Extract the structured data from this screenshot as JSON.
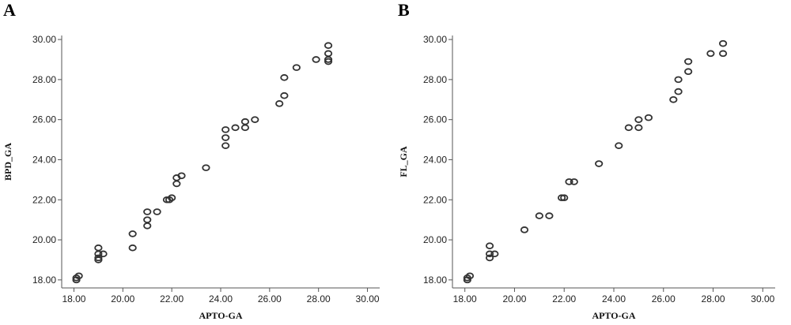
{
  "chart_data": [
    {
      "type": "scatter",
      "panel_label": "A",
      "xlabel": "APTO-GA",
      "ylabel": "BPD_GA",
      "xlim": [
        17.5,
        30.5
      ],
      "ylim": [
        17.6,
        30.2
      ],
      "xticks": [
        "18.00",
        "20.00",
        "22.00",
        "24.00",
        "26.00",
        "28.00",
        "30.00"
      ],
      "yticks": [
        "18.00",
        "20.00",
        "22.00",
        "24.00",
        "26.00",
        "28.00",
        "30.00"
      ],
      "points": [
        [
          18.1,
          18.1
        ],
        [
          18.2,
          18.2
        ],
        [
          18.1,
          18.0
        ],
        [
          19.0,
          19.6
        ],
        [
          19.0,
          19.3
        ],
        [
          19.0,
          19.1
        ],
        [
          19.0,
          19.0
        ],
        [
          19.2,
          19.3
        ],
        [
          20.4,
          20.3
        ],
        [
          20.4,
          19.6
        ],
        [
          21.0,
          21.4
        ],
        [
          21.0,
          21.0
        ],
        [
          21.0,
          20.7
        ],
        [
          21.4,
          21.4
        ],
        [
          21.8,
          22.0
        ],
        [
          21.9,
          22.0
        ],
        [
          22.0,
          22.1
        ],
        [
          22.2,
          23.1
        ],
        [
          22.2,
          22.8
        ],
        [
          22.4,
          23.2
        ],
        [
          23.4,
          23.6
        ],
        [
          24.2,
          25.5
        ],
        [
          24.2,
          25.1
        ],
        [
          24.2,
          24.7
        ],
        [
          24.6,
          25.6
        ],
        [
          25.0,
          25.9
        ],
        [
          25.0,
          25.6
        ],
        [
          25.4,
          26.0
        ],
        [
          26.4,
          26.8
        ],
        [
          26.6,
          27.2
        ],
        [
          26.6,
          28.1
        ],
        [
          27.1,
          28.6
        ],
        [
          27.9,
          29.0
        ],
        [
          28.4,
          29.7
        ],
        [
          28.4,
          29.3
        ],
        [
          28.4,
          29.0
        ],
        [
          28.4,
          28.9
        ]
      ]
    },
    {
      "type": "scatter",
      "panel_label": "B",
      "xlabel": "APTO-GA",
      "ylabel": "FL_GA",
      "xlim": [
        17.5,
        30.5
      ],
      "ylim": [
        17.6,
        30.2
      ],
      "xticks": [
        "18.00",
        "20.00",
        "22.00",
        "24.00",
        "26.00",
        "28.00",
        "30.00"
      ],
      "yticks": [
        "18.00",
        "20.00",
        "22.00",
        "24.00",
        "26.00",
        "28.00",
        "30.00"
      ],
      "points": [
        [
          18.1,
          18.1
        ],
        [
          18.2,
          18.2
        ],
        [
          18.1,
          18.0
        ],
        [
          19.0,
          19.7
        ],
        [
          19.0,
          19.3
        ],
        [
          19.0,
          19.1
        ],
        [
          19.2,
          19.3
        ],
        [
          20.4,
          20.5
        ],
        [
          21.0,
          21.2
        ],
        [
          21.4,
          21.2
        ],
        [
          21.9,
          22.1
        ],
        [
          22.0,
          22.1
        ],
        [
          22.2,
          22.9
        ],
        [
          22.4,
          22.9
        ],
        [
          23.4,
          23.8
        ],
        [
          24.2,
          24.7
        ],
        [
          24.6,
          25.6
        ],
        [
          25.0,
          26.0
        ],
        [
          25.0,
          25.6
        ],
        [
          25.4,
          26.1
        ],
        [
          26.4,
          27.0
        ],
        [
          26.6,
          27.4
        ],
        [
          26.6,
          28.0
        ],
        [
          27.0,
          28.4
        ],
        [
          27.0,
          28.9
        ],
        [
          27.9,
          29.3
        ],
        [
          28.4,
          29.8
        ],
        [
          28.4,
          29.3
        ]
      ]
    }
  ]
}
